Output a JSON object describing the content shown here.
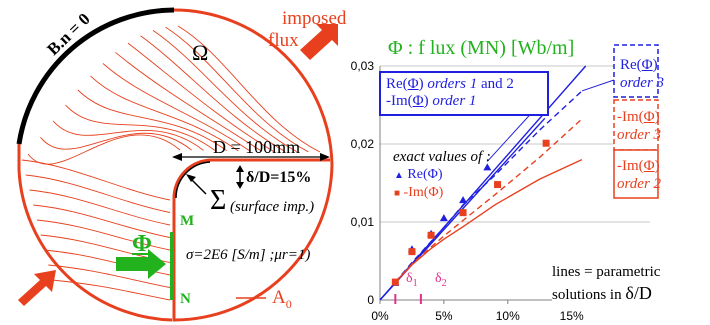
{
  "colors": {
    "red": "#e8401e",
    "blue": "#1f1fe0",
    "green": "#22b21e",
    "magenta": "#e0308a",
    "black": "#000000"
  },
  "left": {
    "bn_label": "B.n = 0",
    "imposed_flux": "imposed flux",
    "imposed_flux_line1": "imposed",
    "imposed_flux_line2": "flux",
    "omega": "Ω",
    "D_label": "D = 100mm",
    "delta_label": "δ/D=15%",
    "sigma": "Σ",
    "surface_imp": "(surface imp.)",
    "M": "M",
    "N": "N",
    "phi": "Φ",
    "sigma_eq": "σ=2E6 [S/m] ;μr=1)",
    "A0": "A0",
    "A0_main": "A",
    "A0_sub": "0"
  },
  "chart_data": {
    "type": "line",
    "title": "Φ : f lux (MN) [Wb/m]",
    "xlabel": "",
    "ylabel": "",
    "xlim": [
      0,
      18
    ],
    "ylim": [
      0,
      0.03
    ],
    "x_ticks": [
      "0%",
      "5%",
      "10%",
      "15%"
    ],
    "x_tick_values": [
      0,
      5,
      10,
      15
    ],
    "y_ticks": [
      "0",
      "0,01",
      "0,02",
      "0,03"
    ],
    "y_tick_values": [
      0,
      0.01,
      0.02,
      0.03
    ],
    "grid": "horizontal",
    "series": [
      {
        "name": "Re(Φ) orders 1 and 2",
        "style": "solid",
        "color": "#1f1fe0",
        "x": [
          0,
          16.1
        ],
        "y": [
          0,
          0.03
        ]
      },
      {
        "name": "-Im(Φ) order 1",
        "style": "solid",
        "color": "#1f1fe0",
        "x": [
          0,
          12.9
        ],
        "y": [
          0,
          0.0233
        ]
      },
      {
        "name": "Re(Φ) order 3",
        "style": "dashed",
        "color": "#1f1fe0",
        "x": [
          1.2,
          2.5,
          4,
          5,
          6.5,
          9,
          12.5,
          15.8
        ],
        "y": [
          0.0023,
          0.0048,
          0.0075,
          0.0093,
          0.0122,
          0.016,
          0.0218,
          0.0268
        ]
      },
      {
        "name": "-Im(Φ) order 3",
        "style": "dashed",
        "color": "#e8401e",
        "x": [
          1.2,
          2.5,
          4,
          5,
          6.5,
          9,
          12.5,
          15.8
        ],
        "y": [
          0.0023,
          0.0046,
          0.0068,
          0.0082,
          0.0102,
          0.0135,
          0.0183,
          0.0232
        ]
      },
      {
        "name": "-Im(Φ) order 2",
        "style": "solid",
        "color": "#e8401e",
        "x": [
          1.2,
          2.5,
          4,
          5,
          6.5,
          9,
          12.5,
          15.8
        ],
        "y": [
          0.0023,
          0.0045,
          0.0066,
          0.0078,
          0.0094,
          0.0122,
          0.0155,
          0.018
        ]
      },
      {
        "name": "Re(Φ) exact values",
        "style": "markers",
        "marker": "triangle",
        "color": "#1f1fe0",
        "x": [
          1.2,
          2.5,
          4,
          5,
          6.5,
          8.4
        ],
        "y": [
          0.0022,
          0.0065,
          0.0085,
          0.0105,
          0.0128,
          0.017
        ]
      },
      {
        "name": "-Im(Φ) exact values",
        "style": "markers",
        "marker": "square",
        "color": "#e8401e",
        "x": [
          1.2,
          2.5,
          4,
          6.5,
          9.2,
          13
        ],
        "y": [
          0.0023,
          0.0062,
          0.0083,
          0.0112,
          0.0148,
          0.0201
        ]
      }
    ],
    "annotations": {
      "legend_blue_main": {
        "a": "Re(",
        "b": "Φ",
        "c": ") ",
        "d": "orders 1",
        "e": " and 2"
      },
      "legend_blue_sub": {
        "a": "-Im(",
        "b": "Φ",
        "c": ") ",
        "d": "order 1"
      },
      "re_order3": {
        "a": "Re(",
        "b": "Φ",
        "c": ")",
        "d": "order 3"
      },
      "im_order3": {
        "a": "-Im(",
        "b": "Φ",
        "c": ")",
        "d": "order 3"
      },
      "im_order2": {
        "a": "-Im(",
        "b": "Φ",
        "c": ")",
        "d": "order 2"
      },
      "exact_header": "exact values of :",
      "exact_re": "Re(Φ)",
      "exact_im": "-Im(Φ)",
      "lines_note_1": "lines = parametric",
      "lines_note_2": "solutions in",
      "lines_note_3": "δ/D",
      "delta1": "δ1",
      "delta1_main": "δ",
      "delta1_sub": "1",
      "delta2": "δ2",
      "delta2_main": "δ",
      "delta2_sub": "2",
      "delta1_x": 1.2,
      "delta2_x": 3.2
    }
  }
}
